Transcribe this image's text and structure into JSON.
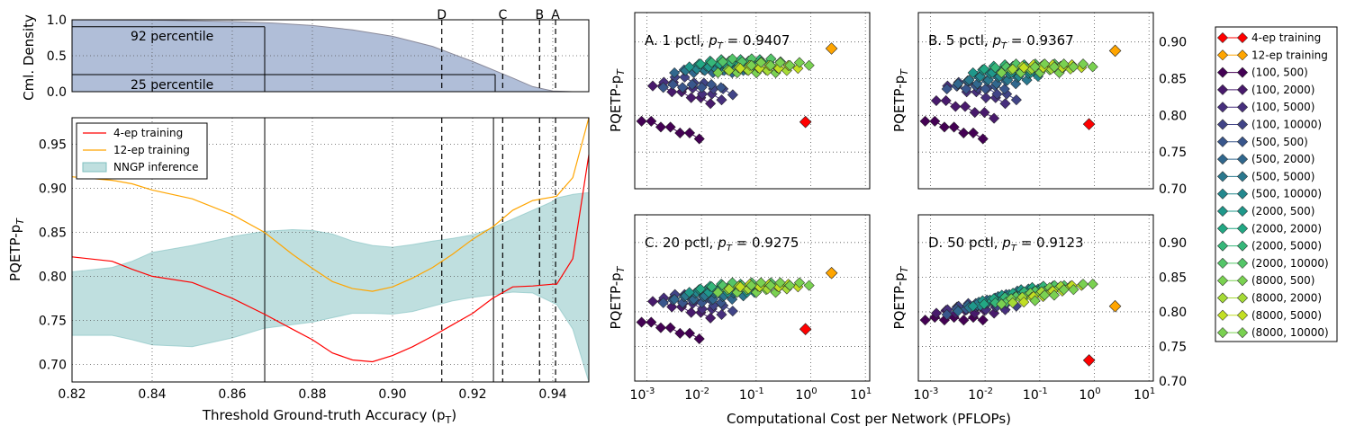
{
  "colors": {
    "red": "#ff0000",
    "orange": "#ffa500",
    "band_fill": "#7fbfbf",
    "cdf_fill": "#b0bed8",
    "cdf_line": "#8a8a9a",
    "grid": "#555555"
  },
  "left": {
    "xlabel": "Threshold Ground-truth Accuracy (p",
    "xlabel_sub": "T",
    "xlabel_close": ")",
    "x_ticks": [
      "0.82",
      "0.84",
      "0.86",
      "0.88",
      "0.90",
      "0.92",
      "0.94"
    ],
    "cdf": {
      "ylabel": "Cml. Density",
      "y_ticks": [
        "1.0",
        "0.5",
        "0.0"
      ],
      "p92_label": "92 percentile",
      "p25_label": "25 percentile",
      "markers": [
        {
          "label": "D",
          "x": 0.9123
        },
        {
          "label": "C",
          "x": 0.9275
        },
        {
          "label": "B",
          "x": 0.9367
        },
        {
          "label": "A",
          "x": 0.9407
        }
      ]
    },
    "main": {
      "ylabel": "PQETP-p",
      "ylabel_sub": "T",
      "y_ticks": [
        "0.95",
        "0.90",
        "0.85",
        "0.80",
        "0.75",
        "0.70"
      ],
      "legend": [
        "4-ep training",
        "12-ep training",
        "NNGP inference"
      ]
    }
  },
  "right": {
    "xlabel": "Computational Cost per Network (PFLOPs)",
    "ylabel": "PQETP-p",
    "ylabel_sub": "T",
    "y_ticks": [
      "0.90",
      "0.85",
      "0.80",
      "0.75",
      "0.70"
    ],
    "x_tick_base": "10",
    "x_tick_exps": [
      "-3",
      "-2",
      "-1",
      "0",
      "1"
    ],
    "panels": [
      {
        "title": "A. 1 pctl,",
        "pt": "= 0.9407"
      },
      {
        "title": "B. 5 pctl,",
        "pt": "= 0.9367"
      },
      {
        "title": "C. 20 pctl,",
        "pt": "= 0.9275"
      },
      {
        "title": "D. 50 pctl,",
        "pt": "= 0.9123"
      }
    ],
    "legend": [
      "4-ep training",
      "12-ep training",
      "(100, 500)",
      "(100, 2000)",
      "(100, 5000)",
      "(100, 10000)",
      "(500, 500)",
      "(500, 2000)",
      "(500, 5000)",
      "(500, 10000)",
      "(2000, 500)",
      "(2000, 2000)",
      "(2000, 5000)",
      "(2000, 10000)",
      "(8000, 500)",
      "(8000, 2000)",
      "(8000, 5000)",
      "(8000, 10000)"
    ],
    "legend_colors": [
      "#ff0000",
      "#ffa500",
      "#440154",
      "#481a6c",
      "#472f7d",
      "#414487",
      "#39568c",
      "#31688e",
      "#2a788e",
      "#23888e",
      "#1f988b",
      "#22a884",
      "#35b779",
      "#54c568",
      "#7ad151",
      "#a5db36",
      "#c2df23",
      "#7ad151"
    ]
  },
  "chart_data": [
    {
      "type": "area",
      "panel": "cumulative density",
      "xlabel": "Threshold Ground-truth Accuracy (p_T)",
      "ylabel": "Cml. Density",
      "xlim": [
        0.82,
        0.949
      ],
      "ylim": [
        0,
        1
      ],
      "x": [
        0.82,
        0.84,
        0.86,
        0.87,
        0.88,
        0.89,
        0.9,
        0.91,
        0.92,
        0.93,
        0.935,
        0.94,
        0.945,
        0.949
      ],
      "y": [
        1.0,
        0.995,
        0.975,
        0.955,
        0.92,
        0.86,
        0.77,
        0.63,
        0.42,
        0.19,
        0.07,
        0.01,
        0.0,
        0.0
      ],
      "reference_lines": {
        "x": [
          0.8681,
          0.9252
        ],
        "y": [
          0.92,
          0.25
        ]
      },
      "dashed_markers": [
        {
          "label": "D",
          "x": 0.9123
        },
        {
          "label": "C",
          "x": 0.9275
        },
        {
          "label": "B",
          "x": 0.9367
        },
        {
          "label": "A",
          "x": 0.9407
        }
      ],
      "annotations": [
        "92 percentile",
        "25 percentile"
      ],
      "grid": true
    },
    {
      "type": "line",
      "panel": "PQETP vs threshold",
      "xlabel": "Threshold Ground-truth Accuracy (p_T)",
      "ylabel": "PQETP-p_T",
      "xlim": [
        0.82,
        0.949
      ],
      "ylim": [
        0.68,
        0.98
      ],
      "grid": true,
      "legend_position": "upper-left",
      "x": [
        0.82,
        0.83,
        0.835,
        0.84,
        0.85,
        0.86,
        0.868,
        0.875,
        0.88,
        0.885,
        0.89,
        0.895,
        0.9,
        0.905,
        0.91,
        0.915,
        0.92,
        0.925,
        0.93,
        0.935,
        0.94,
        0.941,
        0.945,
        0.949
      ],
      "series": [
        {
          "name": "4-ep training",
          "color": "#ff0000",
          "values": [
            0.822,
            0.817,
            0.808,
            0.8,
            0.793,
            0.775,
            0.757,
            0.74,
            0.728,
            0.713,
            0.705,
            0.703,
            0.71,
            0.72,
            0.732,
            0.745,
            0.758,
            0.775,
            0.788,
            0.789,
            0.791,
            0.791,
            0.82,
            0.938
          ]
        },
        {
          "name": "12-ep training",
          "color": "#ffa500",
          "values": [
            0.913,
            0.909,
            0.905,
            0.898,
            0.888,
            0.87,
            0.85,
            0.825,
            0.809,
            0.794,
            0.786,
            0.783,
            0.788,
            0.798,
            0.81,
            0.825,
            0.842,
            0.856,
            0.875,
            0.886,
            0.89,
            0.891,
            0.912,
            0.98
          ]
        },
        {
          "name": "NNGP inference",
          "kind": "band",
          "color": "#7fbfbf",
          "lower": [
            0.733,
            0.733,
            0.728,
            0.722,
            0.72,
            0.73,
            0.741,
            0.745,
            0.748,
            0.753,
            0.758,
            0.758,
            0.757,
            0.76,
            0.766,
            0.772,
            0.776,
            0.779,
            0.782,
            0.781,
            0.77,
            0.768,
            0.74,
            0.68
          ],
          "upper": [
            0.805,
            0.81,
            0.817,
            0.827,
            0.835,
            0.845,
            0.851,
            0.853,
            0.852,
            0.848,
            0.84,
            0.835,
            0.833,
            0.836,
            0.84,
            0.843,
            0.847,
            0.855,
            0.865,
            0.875,
            0.885,
            0.889,
            0.893,
            0.895
          ]
        }
      ]
    },
    {
      "type": "scatter",
      "panels": [
        "A",
        "B",
        "C",
        "D"
      ],
      "xlabel": "Computational Cost per Network (PFLOPs)",
      "ylabel": "PQETP-p_T",
      "xscale": "log",
      "xlim": [
        0.0006,
        12
      ],
      "ylim": [
        0.7,
        0.94
      ],
      "grid": true,
      "legend_position": "outside-right",
      "training_points": {
        "A": {
          "4-ep training": [
            0.8,
            0.791
          ],
          "12-ep training": [
            2.4,
            0.891
          ]
        },
        "B": {
          "4-ep training": [
            0.8,
            0.788
          ],
          "12-ep training": [
            2.4,
            0.888
          ]
        },
        "C": {
          "4-ep training": [
            0.8,
            0.775
          ],
          "12-ep training": [
            2.4,
            0.856
          ]
        },
        "D": {
          "4-ep training": [
            0.8,
            0.73
          ],
          "12-ep training": [
            2.4,
            0.808
          ]
        }
      },
      "nngp_series_center_y": {
        "A": {
          "(100, 500)": 0.782,
          "(100, 2000)": 0.83,
          "(100, 5000)": 0.835,
          "(100, 10000)": 0.842,
          "(500, 500)": 0.84,
          "(500, 2000)": 0.86,
          "(500, 5000)": 0.863,
          "(500, 10000)": 0.865,
          "(2000, 500)": 0.868,
          "(2000, 2000)": 0.872,
          "(2000, 5000)": 0.874,
          "(2000, 10000)": 0.875,
          "(8000, 500)": 0.86,
          "(8000, 2000)": 0.863,
          "(8000, 5000)": 0.866,
          "(8000, 10000)": 0.87
        },
        "B": {
          "(100, 500)": 0.782,
          "(100, 2000)": 0.81,
          "(100, 5000)": 0.83,
          "(100, 10000)": 0.835,
          "(500, 500)": 0.838,
          "(500, 2000)": 0.845,
          "(500, 5000)": 0.85,
          "(500, 10000)": 0.855,
          "(2000, 500)": 0.86,
          "(2000, 2000)": 0.865,
          "(2000, 5000)": 0.867,
          "(2000, 10000)": 0.868,
          "(8000, 500)": 0.86,
          "(8000, 2000)": 0.865,
          "(8000, 5000)": 0.867,
          "(8000, 10000)": 0.868
        },
        "C": {
          "(100, 500)": 0.775,
          "(100, 2000)": 0.805,
          "(100, 5000)": 0.81,
          "(100, 10000)": 0.815,
          "(500, 500)": 0.815,
          "(500, 2000)": 0.82,
          "(500, 5000)": 0.825,
          "(500, 10000)": 0.83,
          "(2000, 500)": 0.83,
          "(2000, 2000)": 0.835,
          "(2000, 5000)": 0.838,
          "(2000, 10000)": 0.84,
          "(8000, 500)": 0.83,
          "(8000, 2000)": 0.835,
          "(8000, 5000)": 0.838,
          "(8000, 10000)": 0.84
        },
        "D": {
          "(100, 500)": 0.79,
          "(100, 2000)": 0.8,
          "(100, 5000)": 0.805,
          "(100, 10000)": 0.81,
          "(500, 500)": 0.81,
          "(500, 2000)": 0.815,
          "(500, 5000)": 0.82,
          "(500, 10000)": 0.823,
          "(2000, 500)": 0.822,
          "(2000, 2000)": 0.825,
          "(2000, 5000)": 0.827,
          "(2000, 10000)": 0.828,
          "(8000, 500)": 0.825,
          "(8000, 2000)": 0.827,
          "(8000, 5000)": 0.828,
          "(8000, 10000)": 0.83
        }
      }
    }
  ]
}
